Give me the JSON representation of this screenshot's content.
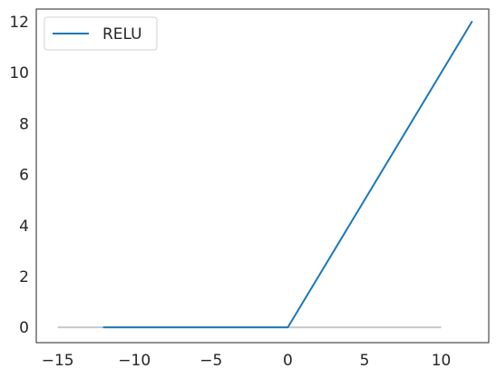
{
  "chart_data": {
    "type": "line",
    "title": "",
    "xlabel": "",
    "ylabel": "",
    "xlim": [
      -16.4,
      13.1
    ],
    "ylim": [
      -0.6,
      12.5
    ],
    "xticks": [
      -15,
      -10,
      -5,
      0,
      5,
      10
    ],
    "xtick_labels": [
      "−15",
      "−10",
      "−5",
      "0",
      "5",
      "10"
    ],
    "yticks": [
      0,
      2,
      4,
      6,
      8,
      10,
      12
    ],
    "ytick_labels": [
      "0",
      "2",
      "4",
      "6",
      "8",
      "10",
      "12"
    ],
    "grid": false,
    "legend": {
      "position": "top-left",
      "entries": [
        "RELU"
      ]
    },
    "reference_line": {
      "x": [
        -15,
        10
      ],
      "y": [
        0,
        0
      ],
      "color": "#c8c8c8"
    },
    "series": [
      {
        "name": "RELU",
        "color": "#1f77b4",
        "x": [
          -12,
          0,
          12
        ],
        "y": [
          0,
          0,
          12
        ]
      }
    ]
  }
}
